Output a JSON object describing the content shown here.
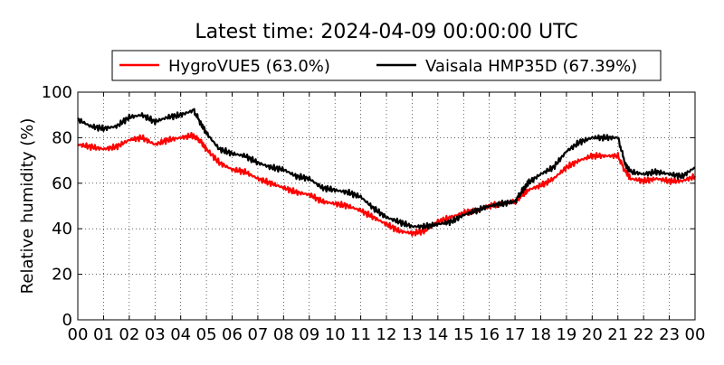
{
  "chart_data": {
    "type": "line",
    "title": "Latest time: 2024-04-09 00:00:00 UTC",
    "xlabel": "",
    "ylabel": "Relative humidity (%)",
    "xlim": [
      0,
      24
    ],
    "ylim": [
      0,
      100
    ],
    "grid": true,
    "legend_placement": "top-center",
    "xticks": [
      0,
      1,
      2,
      3,
      4,
      5,
      6,
      7,
      8,
      9,
      10,
      11,
      12,
      13,
      14,
      15,
      16,
      17,
      18,
      19,
      20,
      21,
      22,
      23,
      24
    ],
    "xtick_labels": [
      "00",
      "01",
      "02",
      "03",
      "04",
      "05",
      "06",
      "07",
      "08",
      "09",
      "10",
      "11",
      "12",
      "13",
      "14",
      "15",
      "16",
      "17",
      "18",
      "19",
      "20",
      "21",
      "22",
      "23",
      "00"
    ],
    "yticks": [
      0,
      20,
      40,
      60,
      80,
      100
    ],
    "ytick_labels": [
      "0",
      "20",
      "40",
      "60",
      "80",
      "100"
    ],
    "x": [
      0,
      0.5,
      1,
      1.5,
      2,
      2.5,
      3,
      3.5,
      4,
      4.5,
      4.8,
      5,
      5.5,
      6,
      6.5,
      7,
      7.5,
      8,
      8.5,
      9,
      9.5,
      10,
      10.5,
      11,
      11.5,
      12,
      12.5,
      13,
      13.5,
      14,
      14.5,
      15,
      15.5,
      16,
      16.5,
      17,
      17.3,
      17.5,
      18,
      18.5,
      19,
      19.5,
      20,
      20.5,
      21,
      21.3,
      21.5,
      22,
      22.5,
      23,
      23.5,
      24
    ],
    "series": [
      {
        "name": "HygroVUE5 (63.0%)",
        "color": "#ff0000",
        "values": [
          77,
          76,
          75,
          76,
          79,
          80,
          77,
          79,
          80,
          81,
          78,
          75,
          69,
          66,
          65,
          62,
          60,
          58,
          56,
          55,
          52,
          51,
          50,
          48,
          45,
          42,
          39,
          38,
          39,
          43,
          45,
          47,
          48,
          50,
          51,
          52,
          55,
          57,
          59,
          62,
          67,
          70,
          72,
          72,
          72,
          65,
          62,
          61,
          62,
          61,
          61,
          63
        ]
      },
      {
        "name": "Vaisala HMP35D (67.39%)",
        "color": "#000000",
        "values": [
          88,
          85,
          84,
          85,
          89,
          90,
          87,
          89,
          90,
          92,
          86,
          82,
          75,
          73,
          72,
          69,
          67,
          66,
          63,
          62,
          58,
          57,
          56,
          54,
          49,
          45,
          43,
          41,
          41,
          42,
          43,
          46,
          48,
          50,
          51,
          52,
          57,
          60,
          64,
          67,
          74,
          78,
          80,
          80,
          80,
          68,
          65,
          64,
          65,
          64,
          63,
          67
        ]
      }
    ]
  }
}
